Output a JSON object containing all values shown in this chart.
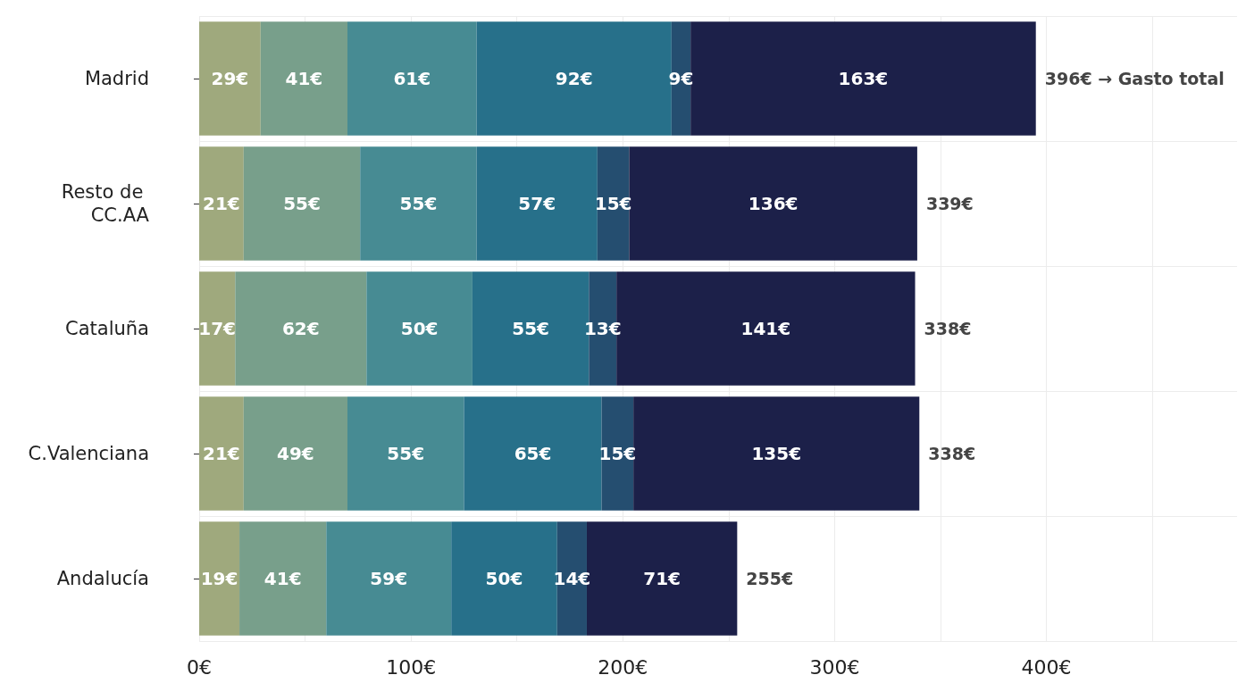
{
  "chart_data": {
    "type": "bar",
    "orientation": "horizontal",
    "stacked": true,
    "grid": true,
    "categories": [
      "Madrid",
      "Resto de CC.AA",
      "Cataluña",
      "C.Valenciana",
      "Andalucía"
    ],
    "xlim": [
      0,
      490
    ],
    "xticks": [
      {
        "value": 0,
        "label": "0€"
      },
      {
        "value": 50,
        "label": null
      },
      {
        "value": 100,
        "label": "100€"
      },
      {
        "value": 150,
        "label": null
      },
      {
        "value": 200,
        "label": "200€"
      },
      {
        "value": 250,
        "label": null
      },
      {
        "value": 300,
        "label": "300€"
      },
      {
        "value": 350,
        "label": null
      },
      {
        "value": 400,
        "label": "400€"
      },
      {
        "value": 450,
        "label": null
      }
    ],
    "series": [
      {
        "color": "#9fa97d",
        "values": [
          29,
          21,
          17,
          21,
          19
        ],
        "value_labels": [
          "29€",
          "21€",
          "17€",
          "21€",
          "19€"
        ]
      },
      {
        "color": "#789f8b",
        "values": [
          41,
          55,
          62,
          49,
          41
        ],
        "value_labels": [
          "41€",
          "55€",
          "62€",
          "49€",
          "41€"
        ]
      },
      {
        "color": "#478b93",
        "values": [
          61,
          55,
          50,
          55,
          59
        ],
        "value_labels": [
          "61€",
          "55€",
          "50€",
          "55€",
          "59€"
        ]
      },
      {
        "color": "#27708a",
        "values": [
          92,
          57,
          55,
          65,
          50
        ],
        "value_labels": [
          "92€",
          "57€",
          "55€",
          "65€",
          "50€"
        ]
      },
      {
        "color": "#254e70",
        "values": [
          9,
          15,
          13,
          15,
          14
        ],
        "value_labels": [
          "9€",
          "15€",
          "13€",
          "15€",
          "14€"
        ]
      },
      {
        "color": "#1c2049",
        "values": [
          163,
          136,
          141,
          135,
          71
        ],
        "value_labels": [
          "163€",
          "136€",
          "141€",
          "135€",
          "71€"
        ]
      }
    ],
    "totals": [
      "396€ → Gasto total",
      "339€",
      "338€",
      "338€",
      "255€"
    ]
  }
}
